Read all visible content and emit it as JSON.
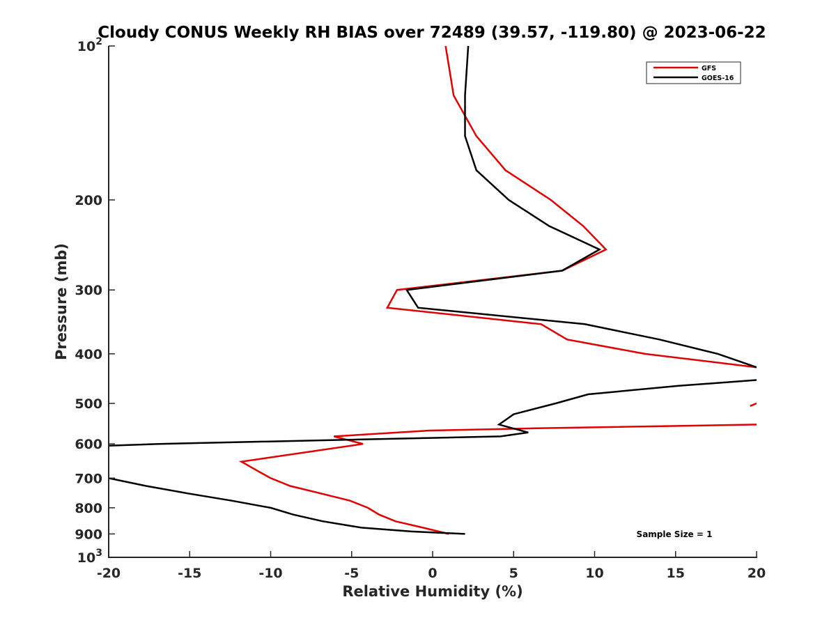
{
  "chart_data": {
    "type": "line",
    "title": "Cloudy CONUS Weekly RH BIAS over 72489 (39.57, -119.80) @ 2023-06-22",
    "xlabel": "Relative Humidity (%)",
    "ylabel": "Pressure (mb)",
    "xlim": [
      -20,
      20
    ],
    "ylim": [
      100,
      1000
    ],
    "y_scale": "log",
    "y_reversed": true,
    "grid": false,
    "legend_position": "top-right",
    "x_ticks": [
      "-20",
      "-15",
      "-10",
      "-5",
      "0",
      "5",
      "10",
      "15",
      "20"
    ],
    "y_ticks": [
      {
        "value": 100,
        "base": "10",
        "exp": "2"
      },
      {
        "value": 200,
        "label": "200"
      },
      {
        "value": 300,
        "label": "300"
      },
      {
        "value": 400,
        "label": "400"
      },
      {
        "value": 500,
        "label": "500"
      },
      {
        "value": 600,
        "label": "600"
      },
      {
        "value": 700,
        "label": "700"
      },
      {
        "value": 800,
        "label": "800"
      },
      {
        "value": 900,
        "label": "900"
      },
      {
        "value": 1000,
        "base": "10",
        "exp": "3"
      }
    ],
    "annotation": "Sample Size = 1",
    "series": [
      {
        "name": "GFS",
        "color": "#e00000",
        "segments": [
          [
            [
              0.8,
              100
            ],
            [
              1.3,
              125
            ],
            [
              2.7,
              150
            ],
            [
              4.5,
              175
            ],
            [
              7.3,
              200
            ],
            [
              9.3,
              225
            ],
            [
              10.7,
              250
            ],
            [
              8.0,
              275
            ],
            [
              -2.2,
              300
            ],
            [
              -2.8,
              325
            ],
            [
              6.7,
              350
            ],
            [
              8.3,
              375
            ],
            [
              13.1,
              400
            ],
            [
              20,
              425
            ]
          ],
          [
            [
              20,
              500
            ],
            [
              19.6,
              506
            ]
          ],
          [
            [
              20,
              550
            ],
            [
              5.4,
              560
            ],
            [
              -0.2,
              565
            ],
            [
              -6.1,
              580
            ],
            [
              -4.3,
              600
            ],
            [
              -11.8,
              650
            ],
            [
              -10.9,
              675
            ],
            [
              -10.0,
              700
            ],
            [
              -8.8,
              725
            ],
            [
              -6.9,
              750
            ],
            [
              -5.1,
              775
            ],
            [
              -4.0,
              800
            ],
            [
              -3.3,
              825
            ],
            [
              -2.3,
              850
            ],
            [
              -0.6,
              875
            ],
            [
              1.0,
              900
            ]
          ]
        ]
      },
      {
        "name": "GOES-16",
        "color": "#000000",
        "segments": [
          [
            [
              2.2,
              100
            ],
            [
              2.0,
              125
            ],
            [
              2.0,
              150
            ],
            [
              2.7,
              175
            ],
            [
              4.7,
              200
            ],
            [
              7.2,
              225
            ],
            [
              10.3,
              250
            ],
            [
              8.0,
              275
            ],
            [
              -1.6,
              300
            ],
            [
              -0.9,
              325
            ],
            [
              9.4,
              350
            ],
            [
              14.0,
              375
            ],
            [
              17.6,
              400
            ],
            [
              20,
              425
            ]
          ],
          [
            [
              20,
              450
            ],
            [
              15.2,
              462
            ],
            [
              9.6,
              480
            ],
            [
              7.6,
              500
            ],
            [
              5.0,
              525
            ],
            [
              4.1,
              550
            ],
            [
              5.9,
              570
            ],
            [
              4.2,
              580
            ],
            [
              -16.9,
              600
            ],
            [
              -20,
              605
            ]
          ],
          [
            [
              -20,
              700
            ],
            [
              -17.7,
              725
            ],
            [
              -15.1,
              750
            ],
            [
              -12.4,
              775
            ],
            [
              -10.0,
              800
            ],
            [
              -8.6,
              825
            ],
            [
              -6.8,
              850
            ],
            [
              -4.4,
              875
            ],
            [
              -1.3,
              890
            ],
            [
              2.0,
              900
            ]
          ]
        ]
      }
    ]
  }
}
